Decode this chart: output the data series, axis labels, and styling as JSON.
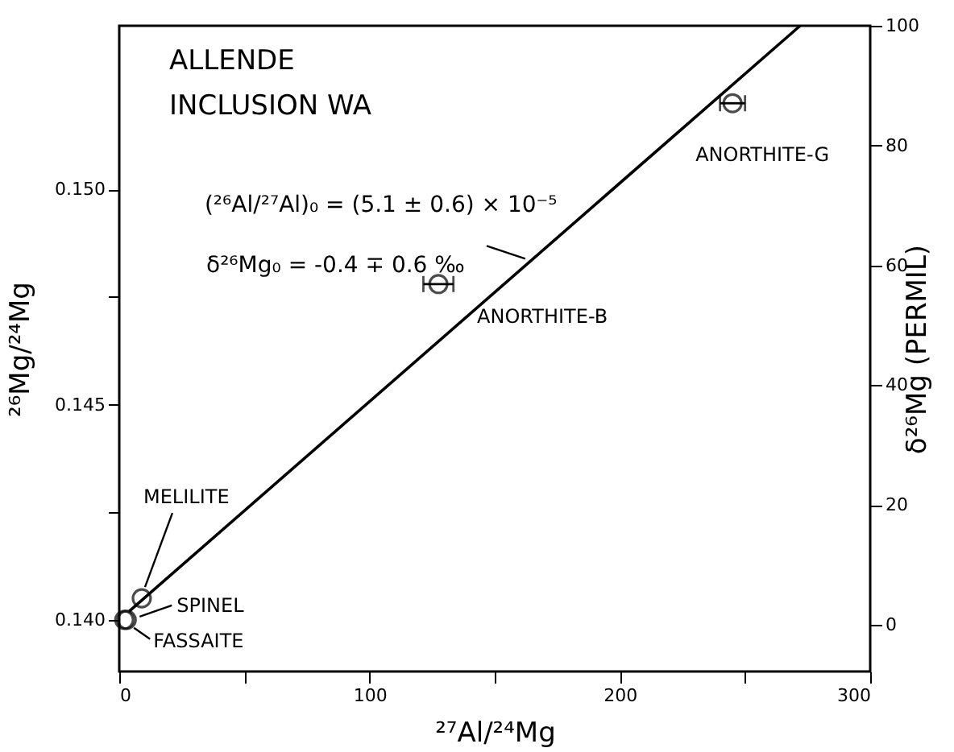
{
  "chart_data": {
    "type": "scatter",
    "xlabel": "²⁷Al/²⁴Mg",
    "ylabel": "²⁶Mg/²⁴Mg",
    "y2label": "δ²⁶Mg (PERMIL)",
    "xlim": [
      0,
      300
    ],
    "xticks": [
      0,
      {
        "value": 50,
        "label": null
      },
      100,
      {
        "value": 150,
        "label": null
      },
      200,
      {
        "value": 250,
        "label": null
      },
      300
    ],
    "ylim": [
      0.1388,
      0.1538
    ],
    "yticks": [
      {
        "value": 0.14,
        "label": "0.140"
      },
      {
        "value": 0.1425,
        "label": null
      },
      {
        "value": 0.145,
        "label": "0.145"
      },
      {
        "value": 0.1475,
        "label": null
      },
      {
        "value": 0.15,
        "label": "0.150"
      }
    ],
    "y2lim": [
      -7.8,
      100
    ],
    "y2ticks": [
      0,
      20,
      40,
      60,
      80,
      100
    ],
    "series": [
      {
        "type": "scatter",
        "color": "#000000",
        "marker": "circle",
        "x": [
          2,
          3,
          9,
          127.5,
          245
        ],
        "values": [
          0.14,
          0.14,
          0.1405,
          0.1478,
          0.152
        ],
        "xerrors": [
          null,
          null,
          null,
          6,
          5
        ]
      },
      {
        "type": "line",
        "color": "#000000",
        "x": [
          4,
          272
        ],
        "values": [
          0.1402,
          0.1538
        ]
      }
    ],
    "annotations": [
      "ALLENDE",
      "INCLUSION WA",
      {
        "text": "(²⁶Al/²⁷Al)₀ = (5.1 ± 0.6) × 10⁻⁵",
        "x": 163.5,
        "y": 0.14835
      },
      "δ²⁶Mg₀ = -0.4 ∓ 0.6 ‰",
      {
        "text": "MELILITE",
        "x": 9,
        "y": 0.1405
      },
      {
        "text": "SPINEL",
        "x": 3,
        "y": 0.14
      },
      {
        "text": "FASSAITE",
        "x": 2,
        "y": 0.14
      },
      {
        "text": "ANORTHITE-B",
        "x": 127.5,
        "y": 0.1478
      },
      {
        "text": "ANORTHITE-G",
        "x": 245,
        "y": 0.152
      }
    ]
  }
}
